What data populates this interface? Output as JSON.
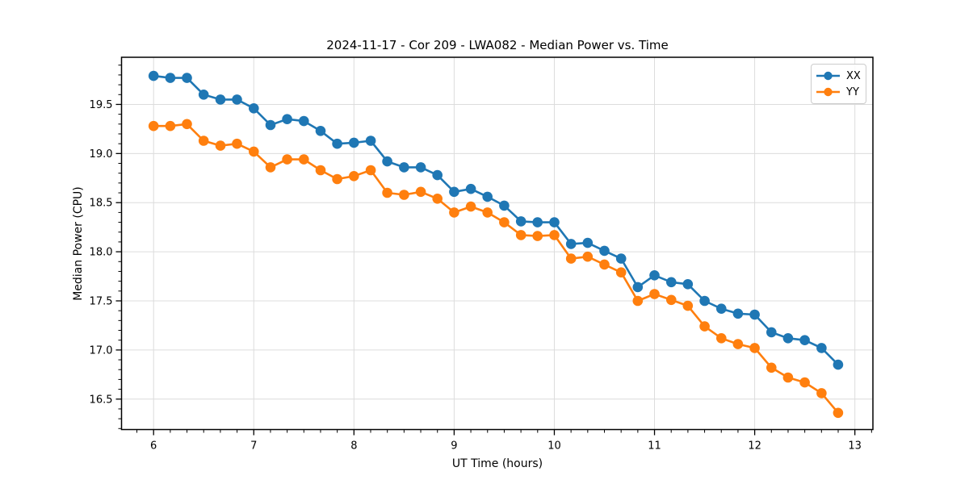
{
  "figure": {
    "background": "#ffffff"
  },
  "chart_data": {
    "type": "line",
    "title": "2024-11-17 - Cor 209 - LWA082 - Median Power vs. Time",
    "xlabel": "UT Time (hours)",
    "ylabel": "Median Power (CPU)",
    "xlim": [
      5.68,
      13.18
    ],
    "ylim": [
      16.19,
      19.98
    ],
    "x_ticks": [
      6,
      7,
      8,
      9,
      10,
      11,
      12,
      13
    ],
    "y_ticks": [
      16.5,
      17.0,
      17.5,
      18.0,
      18.5,
      19.0,
      19.5
    ],
    "x_minor_step": 0.16667,
    "y_minor_step": 0.1,
    "grid": true,
    "legend_position": "upper right",
    "x": [
      6.0,
      6.167,
      6.333,
      6.5,
      6.667,
      6.833,
      7.0,
      7.167,
      7.333,
      7.5,
      7.667,
      7.833,
      8.0,
      8.167,
      8.333,
      8.5,
      8.667,
      8.833,
      9.0,
      9.167,
      9.333,
      9.5,
      9.667,
      9.833,
      10.0,
      10.167,
      10.333,
      10.5,
      10.667,
      10.833,
      11.0,
      11.167,
      11.333,
      11.5,
      11.667,
      11.833,
      12.0,
      12.167,
      12.333,
      12.5,
      12.667,
      12.833
    ],
    "series": [
      {
        "name": "XX",
        "color": "#1f77b4",
        "values": [
          19.79,
          19.77,
          19.77,
          19.6,
          19.55,
          19.55,
          19.46,
          19.29,
          19.35,
          19.33,
          19.23,
          19.1,
          19.11,
          19.13,
          18.92,
          18.86,
          18.86,
          18.78,
          18.61,
          18.64,
          18.56,
          18.47,
          18.31,
          18.3,
          18.3,
          18.08,
          18.09,
          18.01,
          17.93,
          17.64,
          17.76,
          17.69,
          17.67,
          17.5,
          17.42,
          17.37,
          17.36,
          17.18,
          17.12,
          17.1,
          17.02,
          16.85
        ]
      },
      {
        "name": "YY",
        "color": "#ff7f0e",
        "values": [
          19.28,
          19.28,
          19.3,
          19.13,
          19.08,
          19.1,
          19.02,
          18.86,
          18.94,
          18.94,
          18.83,
          18.74,
          18.77,
          18.83,
          18.6,
          18.58,
          18.61,
          18.54,
          18.4,
          18.46,
          18.4,
          18.3,
          18.17,
          18.16,
          18.17,
          17.93,
          17.95,
          17.87,
          17.79,
          17.5,
          17.57,
          17.51,
          17.45,
          17.24,
          17.12,
          17.06,
          17.02,
          16.82,
          16.72,
          16.67,
          16.56,
          16.36
        ]
      }
    ],
    "colors": {
      "grid": "#dcdcdc",
      "spine": "#000000",
      "tick": "#000000",
      "text": "#000000"
    }
  }
}
